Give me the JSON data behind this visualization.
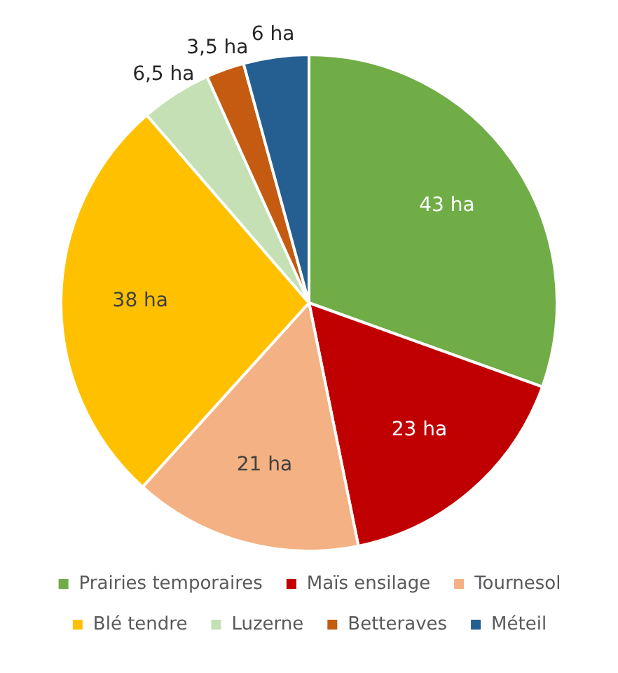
{
  "chart_data": {
    "type": "pie",
    "categories": [
      "Prairies temporaires",
      "Maïs ensilage",
      "Tournesol",
      "Blé tendre",
      "Luzerne",
      "Betteraves",
      "Méteil"
    ],
    "values": [
      43,
      23,
      21,
      38,
      6.5,
      3.5,
      6
    ],
    "colors": [
      "#70ad47",
      "#c00000",
      "#f4b183",
      "#ffc000",
      "#c5e0b4",
      "#c55a11",
      "#255e91"
    ],
    "value_labels": [
      "43 ha",
      "23 ha",
      "21 ha",
      "38 ha",
      "6,5 ha",
      "3,5 ha",
      "6 ha"
    ],
    "legend": "bottom"
  }
}
